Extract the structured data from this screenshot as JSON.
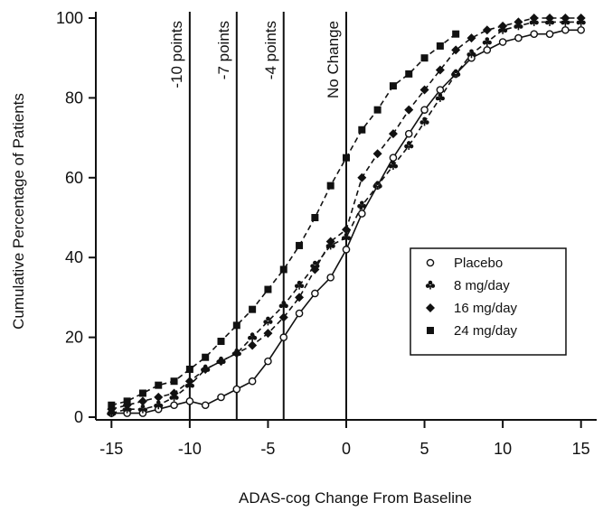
{
  "chart_data": {
    "type": "line",
    "xlabel": "ADAS-cog Change From Baseline",
    "ylabel": "Cumulative Percentage of Patients",
    "xlim": [
      -16,
      16
    ],
    "ylim": [
      0,
      100
    ],
    "xticks": [
      -15,
      -10,
      -5,
      0,
      5,
      10,
      15
    ],
    "yticks": [
      0,
      20,
      40,
      60,
      80,
      100
    ],
    "grid": false,
    "legend_position": "middle-right",
    "reference_lines": [
      {
        "x": -10,
        "label": "-10 points"
      },
      {
        "x": -7,
        "label": "-7 points"
      },
      {
        "x": -4,
        "label": "-4 points"
      },
      {
        "x": 0,
        "label": "No Change"
      }
    ],
    "series": [
      {
        "name": "Placebo",
        "marker": "open-circle",
        "line": "solid",
        "x": [
          -15,
          -14,
          -13,
          -12,
          -11,
          -10,
          -9,
          -8,
          -7,
          -6,
          -5,
          -4,
          -3,
          -2,
          -1,
          0,
          1,
          2,
          3,
          4,
          5,
          6,
          7,
          8,
          9,
          10,
          11,
          12,
          13,
          14,
          15
        ],
        "y": [
          1,
          1,
          1,
          2,
          3,
          4,
          3,
          5,
          7,
          9,
          14,
          20,
          26,
          31,
          35,
          42,
          51,
          58,
          65,
          71,
          77,
          82,
          86,
          90,
          92,
          94,
          95,
          96,
          96,
          97,
          97
        ]
      },
      {
        "name": "8 mg/day",
        "marker": "club",
        "line": "dashed",
        "x": [
          -15,
          -14,
          -13,
          -12,
          -11,
          -10,
          -9,
          -8,
          -7,
          -6,
          -5,
          -4,
          -3,
          -2,
          -1,
          0,
          1,
          2,
          3,
          4,
          5,
          6,
          7,
          8,
          9,
          10,
          11,
          12,
          13,
          14,
          15
        ],
        "y": [
          1,
          2,
          2,
          3,
          5,
          8,
          12,
          14,
          16,
          20,
          24,
          28,
          33,
          38,
          43,
          45,
          53,
          58,
          63,
          68,
          74,
          80,
          86,
          91,
          94,
          97,
          98,
          99,
          99,
          99,
          99
        ]
      },
      {
        "name": "16 mg/day",
        "marker": "filled-diamond",
        "line": "dashed",
        "x": [
          -15,
          -14,
          -13,
          -12,
          -11,
          -10,
          -9,
          -8,
          -7,
          -6,
          -5,
          -4,
          -3,
          -2,
          -1,
          0,
          1,
          2,
          3,
          4,
          5,
          6,
          7,
          8,
          9,
          10,
          11,
          12,
          13,
          14,
          15
        ],
        "y": [
          2,
          3,
          4,
          5,
          6,
          9,
          12,
          14,
          16,
          18,
          21,
          25,
          30,
          37,
          44,
          47,
          60,
          66,
          71,
          77,
          82,
          87,
          92,
          95,
          97,
          98,
          99,
          100,
          100,
          100,
          100
        ]
      },
      {
        "name": "24 mg/day",
        "marker": "filled-square",
        "line": "dashed",
        "x": [
          -15,
          -14,
          -13,
          -12,
          -11,
          -10,
          -9,
          -8,
          -7,
          -6,
          -5,
          -4,
          -3,
          -2,
          -1,
          0,
          1,
          2,
          3,
          4,
          5,
          6,
          7
        ],
        "y": [
          3,
          4,
          6,
          8,
          9,
          12,
          15,
          19,
          23,
          27,
          32,
          37,
          43,
          50,
          58,
          65,
          72,
          77,
          83,
          86,
          90,
          93,
          96
        ]
      }
    ]
  }
}
